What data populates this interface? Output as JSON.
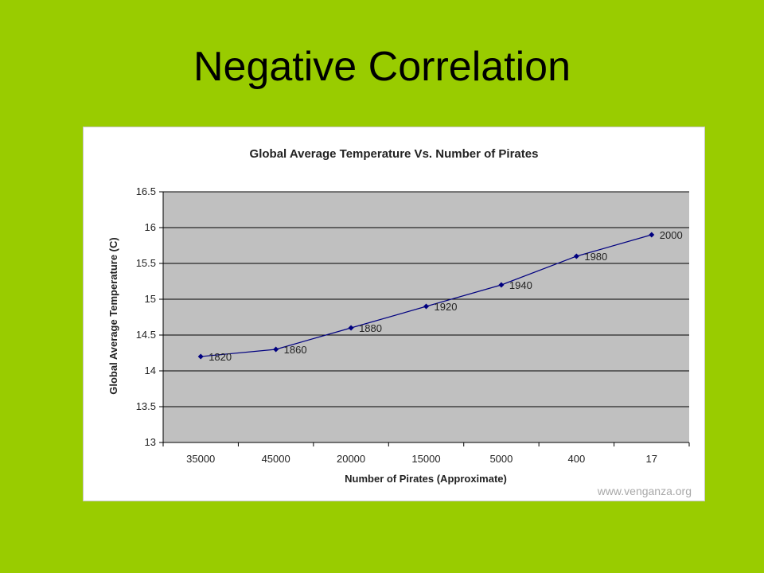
{
  "slide": {
    "title": "Negative Correlation"
  },
  "credit": "www.venganza.org",
  "colors": {
    "background": "#99cc00",
    "plot_area": "#c0c0c0",
    "series": "#000080"
  },
  "chart_data": {
    "type": "line",
    "title": "Global Average Temperature Vs. Number of Pirates",
    "xlabel": "Number of Pirates (Approximate)",
    "ylabel": "Global Average Temperature  (C)",
    "categories": [
      "35000",
      "45000",
      "20000",
      "15000",
      "5000",
      "400",
      "17"
    ],
    "ylim": [
      13,
      16.5
    ],
    "yticks": [
      "13",
      "13.5",
      "14",
      "14.5",
      "15",
      "15.5",
      "16",
      "16.5"
    ],
    "series": [
      {
        "values": [
          14.2,
          14.3,
          14.6,
          14.9,
          15.2,
          15.6,
          15.9
        ],
        "point_labels": [
          "1820",
          "1860",
          "1880",
          "1920",
          "1940",
          "1980",
          "2000"
        ]
      }
    ],
    "grid": true,
    "legend": "none"
  }
}
